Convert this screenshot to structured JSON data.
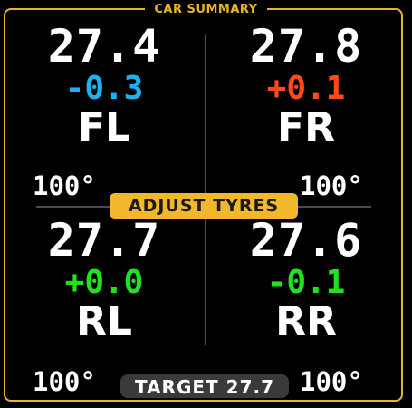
{
  "panel": {
    "title": "CAR SUMMARY",
    "border_color": "#e8b32a"
  },
  "tyres": {
    "fl": {
      "label": "FL",
      "pressure": "27.4",
      "delta": "-0.3",
      "delta_color": "#1fb0f0",
      "temp": "100°"
    },
    "fr": {
      "label": "FR",
      "pressure": "27.8",
      "delta": "+0.1",
      "delta_color": "#ff4a1a",
      "temp": "100°"
    },
    "rl": {
      "label": "RL",
      "pressure": "27.7",
      "delta": "+0.0",
      "delta_color": "#22e022",
      "temp": "100°"
    },
    "rr": {
      "label": "RR",
      "pressure": "27.6",
      "delta": "-0.1",
      "delta_color": "#22e022",
      "temp": "100°"
    }
  },
  "adjust": {
    "label": "ADJUST TYRES",
    "color": "#f0b82a"
  },
  "target": {
    "label": "TARGET",
    "value": "27.7"
  }
}
